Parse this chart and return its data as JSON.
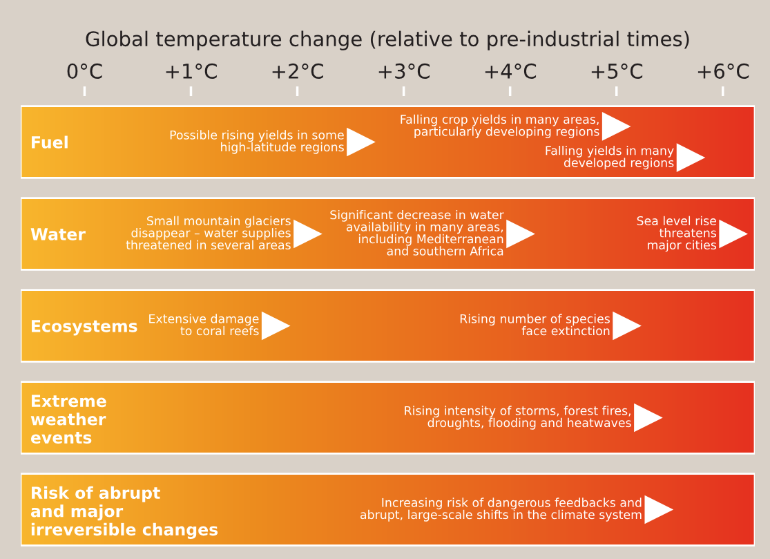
{
  "chart_data": {
    "type": "scatter",
    "orientation": "horizontal",
    "title": "Global temperature change (relative to pre-industrial times)",
    "categories": [
      "Fuel",
      "Water",
      "Ecosystems",
      "Extreme\nweather\nevents",
      "Risk of abrupt\nand major\nirreversible changes"
    ],
    "xlim": [
      -0.6,
      6.3
    ],
    "xticks": [
      {
        "value": 0,
        "label": "0°C"
      },
      {
        "value": 1,
        "label": "+1°C"
      },
      {
        "value": 2,
        "label": "+2°C"
      },
      {
        "value": 3,
        "label": "+3°C"
      },
      {
        "value": 4,
        "label": "+4°C"
      },
      {
        "value": 5,
        "label": "+5°C"
      },
      {
        "value": 6,
        "label": "+6°C"
      }
    ],
    "marker": "triangle",
    "grid": false,
    "legend": false,
    "series": [
      {
        "color": "#ffffff",
        "values": [
          2.6,
          2.1,
          1.8,
          5.3,
          5.4
        ]
      },
      {
        "color": "#ffffff",
        "values": [
          5.0,
          4.1,
          5.1,
          null,
          null
        ]
      },
      {
        "color": "#ffffff",
        "values": [
          5.7,
          6.1,
          null,
          null,
          null
        ]
      }
    ],
    "annotations": [
      "Possible rising yields in some\nhigh-latitude regions",
      "Falling crop yields in many areas,\nparticularly developing regions",
      "Falling yields in many\ndeveloped regions",
      "Small mountain glaciers\ndisappear – water supplies\nthreatened in several areas",
      "Significant decrease in water\navailability in many areas,\nincluding Mediterranean\nand southern Africa",
      "Sea level rise\nthreatens\nmajor cities",
      "Extensive damage\nto coral reefs",
      "Rising number of species\nface extinction",
      "Rising intensity of storms, forest fires,\ndroughts, flooding and heatwaves",
      "Increasing risk of dangerous feedbacks and\nabrupt, large-scale shifts in the climate system"
    ]
  }
}
